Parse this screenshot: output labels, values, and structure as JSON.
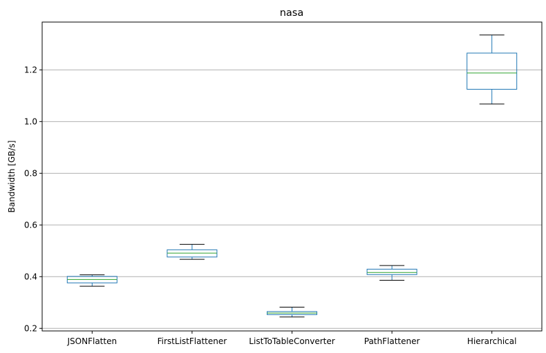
{
  "chart_data": {
    "type": "box",
    "title": "nasa",
    "xlabel": "",
    "ylabel": "Bandwidth [GB/s]",
    "ylim": [
      0.19,
      1.385
    ],
    "yticks": [
      0.2,
      0.4,
      0.6,
      0.8,
      1.0,
      1.2
    ],
    "ytick_labels": [
      "0.2",
      "0.4",
      "0.6",
      "0.8",
      "1.0",
      "1.2"
    ],
    "grid": "y",
    "categories": [
      "JSONFlatten",
      "FirstListFlattener",
      "ListToTableConverter",
      "PathFlattener",
      "Hierarchical"
    ],
    "boxes": [
      {
        "whisker_low": 0.363,
        "q1": 0.376,
        "median": 0.389,
        "q3": 0.401,
        "whisker_high": 0.407
      },
      {
        "whisker_low": 0.467,
        "q1": 0.476,
        "median": 0.491,
        "q3": 0.504,
        "whisker_high": 0.525
      },
      {
        "whisker_low": 0.244,
        "q1": 0.253,
        "median": 0.259,
        "q3": 0.265,
        "whisker_high": 0.282
      },
      {
        "whisker_low": 0.386,
        "q1": 0.408,
        "median": 0.416,
        "q3": 0.429,
        "whisker_high": 0.443
      },
      {
        "whisker_low": 1.068,
        "q1": 1.125,
        "median": 1.188,
        "q3": 1.265,
        "whisker_high": 1.335
      }
    ],
    "colors": {
      "box": "#1f77b4",
      "median": "#2ca02c",
      "whisker_cap": "#000000",
      "grid": "#b0b0b0",
      "axis": "#000000"
    }
  }
}
